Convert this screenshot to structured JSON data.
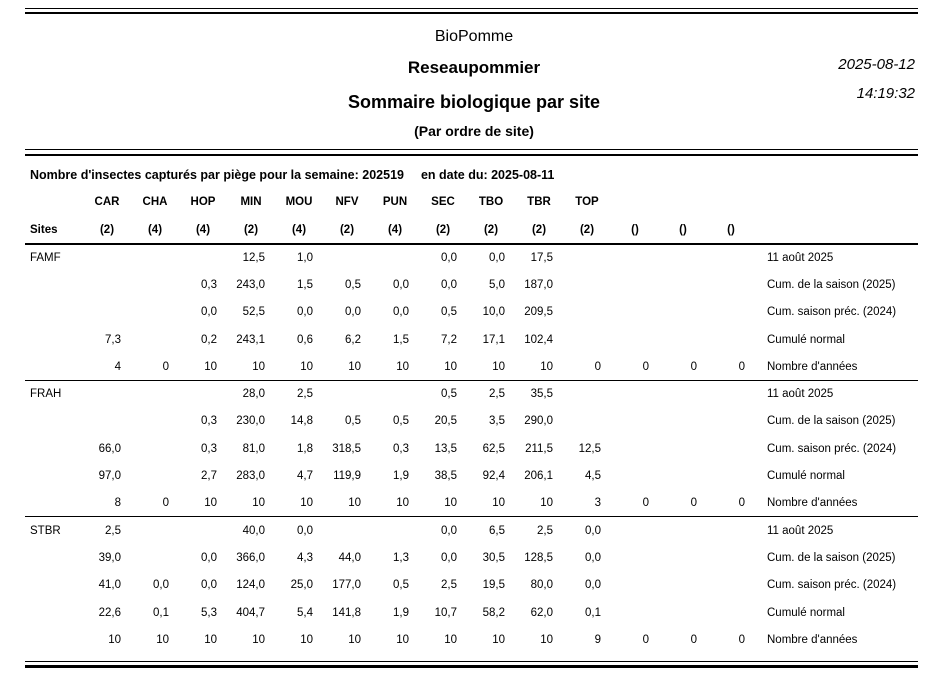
{
  "header": {
    "app_title": "BioPomme",
    "network_title": "Reseaupommier",
    "report_title": "Sommaire biologique par site",
    "report_subtitle": "(Par ordre de site)",
    "date": "2025-08-12",
    "time": "14:19:32"
  },
  "summary": {
    "week_label": "Nombre d'insectes capturés par piège pour la semaine:",
    "week_value": "202519",
    "date_label": "en date du:",
    "date_value": "2025-08-11"
  },
  "table": {
    "sites_label": "Sites",
    "columns": [
      {
        "code": "CAR",
        "traps": "(2)"
      },
      {
        "code": "CHA",
        "traps": "(4)"
      },
      {
        "code": "HOP",
        "traps": "(4)"
      },
      {
        "code": "MIN",
        "traps": "(2)"
      },
      {
        "code": "MOU",
        "traps": "(4)"
      },
      {
        "code": "NFV",
        "traps": "(2)"
      },
      {
        "code": "PUN",
        "traps": "(4)"
      },
      {
        "code": "SEC",
        "traps": "(2)"
      },
      {
        "code": "TBO",
        "traps": "(2)"
      },
      {
        "code": "TBR",
        "traps": "(2)"
      },
      {
        "code": "TOP",
        "traps": "(2)"
      },
      {
        "code": "",
        "traps": "()"
      },
      {
        "code": "",
        "traps": "()"
      },
      {
        "code": "",
        "traps": "()"
      }
    ],
    "sites": [
      {
        "name": "FAMF",
        "rows": [
          {
            "label": "11 août 2025",
            "values": [
              "",
              "",
              "",
              "12,5",
              "1,0",
              "",
              "",
              "0,0",
              "0,0",
              "17,5",
              "",
              "",
              "",
              ""
            ]
          },
          {
            "label": "Cum. de la saison (2025)",
            "values": [
              "",
              "",
              "0,3",
              "243,0",
              "1,5",
              "0,5",
              "0,0",
              "0,0",
              "5,0",
              "187,0",
              "",
              "",
              "",
              ""
            ]
          },
          {
            "label": "Cum. saison préc. (2024)",
            "values": [
              "",
              "",
              "0,0",
              "52,5",
              "0,0",
              "0,0",
              "0,0",
              "0,5",
              "10,0",
              "209,5",
              "",
              "",
              "",
              ""
            ]
          },
          {
            "label": "Cumulé normal",
            "values": [
              "7,3",
              "",
              "0,2",
              "243,1",
              "0,6",
              "6,2",
              "1,5",
              "7,2",
              "17,1",
              "102,4",
              "",
              "",
              "",
              ""
            ]
          },
          {
            "label": "Nombre d'années",
            "values": [
              "4",
              "0",
              "10",
              "10",
              "10",
              "10",
              "10",
              "10",
              "10",
              "10",
              "0",
              "0",
              "0",
              "0"
            ]
          }
        ]
      },
      {
        "name": "FRAH",
        "rows": [
          {
            "label": "11 août 2025",
            "values": [
              "",
              "",
              "",
              "28,0",
              "2,5",
              "",
              "",
              "0,5",
              "2,5",
              "35,5",
              "",
              "",
              "",
              ""
            ]
          },
          {
            "label": "Cum. de la saison (2025)",
            "values": [
              "",
              "",
              "0,3",
              "230,0",
              "14,8",
              "0,5",
              "0,5",
              "20,5",
              "3,5",
              "290,0",
              "",
              "",
              "",
              ""
            ]
          },
          {
            "label": "Cum. saison préc. (2024)",
            "values": [
              "66,0",
              "",
              "0,3",
              "81,0",
              "1,8",
              "318,5",
              "0,3",
              "13,5",
              "62,5",
              "211,5",
              "12,5",
              "",
              "",
              ""
            ]
          },
          {
            "label": "Cumulé normal",
            "values": [
              "97,0",
              "",
              "2,7",
              "283,0",
              "4,7",
              "119,9",
              "1,9",
              "38,5",
              "92,4",
              "206,1",
              "4,5",
              "",
              "",
              ""
            ]
          },
          {
            "label": "Nombre d'années",
            "values": [
              "8",
              "0",
              "10",
              "10",
              "10",
              "10",
              "10",
              "10",
              "10",
              "10",
              "3",
              "0",
              "0",
              "0"
            ]
          }
        ]
      },
      {
        "name": "STBR",
        "rows": [
          {
            "label": "11 août 2025",
            "values": [
              "2,5",
              "",
              "",
              "40,0",
              "0,0",
              "",
              "",
              "0,0",
              "6,5",
              "2,5",
              "0,0",
              "",
              "",
              ""
            ]
          },
          {
            "label": "Cum. de la saison (2025)",
            "values": [
              "39,0",
              "",
              "0,0",
              "366,0",
              "4,3",
              "44,0",
              "1,3",
              "0,0",
              "30,5",
              "128,5",
              "0,0",
              "",
              "",
              ""
            ]
          },
          {
            "label": "Cum. saison préc. (2024)",
            "values": [
              "41,0",
              "0,0",
              "0,0",
              "124,0",
              "25,0",
              "177,0",
              "0,5",
              "2,5",
              "19,5",
              "80,0",
              "0,0",
              "",
              "",
              ""
            ]
          },
          {
            "label": "Cumulé normal",
            "values": [
              "22,6",
              "0,1",
              "5,3",
              "404,7",
              "5,4",
              "141,8",
              "1,9",
              "10,7",
              "58,2",
              "62,0",
              "0,1",
              "",
              "",
              ""
            ]
          },
          {
            "label": "Nombre d'années",
            "values": [
              "10",
              "10",
              "10",
              "10",
              "10",
              "10",
              "10",
              "10",
              "10",
              "10",
              "9",
              "0",
              "0",
              "0"
            ]
          }
        ]
      }
    ]
  }
}
